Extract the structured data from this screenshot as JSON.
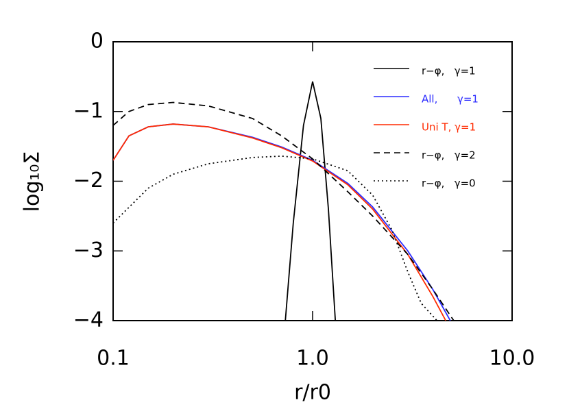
{
  "chart_data": {
    "type": "line",
    "xlabel": "r/r0",
    "ylabel": "log₁₀Σ",
    "xscale": "log",
    "xlim": [
      0.1,
      10
    ],
    "ylim": [
      -4,
      0
    ],
    "xticks": [
      0.1,
      {
        "value": 1,
        "label": "1.0"
      },
      {
        "value": 10,
        "label": "10.0"
      }
    ],
    "yticks": [
      {
        "value": 0,
        "label": "0"
      },
      {
        "value": -1,
        "label": "−1"
      },
      {
        "value": -2,
        "label": "−2"
      },
      {
        "value": -3,
        "label": "−3"
      },
      {
        "value": -4,
        "label": "−4"
      }
    ],
    "legend": "upper right",
    "series": [
      {
        "name": "r−φ,   γ=1",
        "color": "#000000",
        "dash": "solid",
        "x": [
          0.73,
          0.8,
          0.9,
          1.0,
          1.1,
          1.2,
          1.3
        ],
        "values": [
          -4.0,
          -2.6,
          -1.2,
          -0.57,
          -1.1,
          -2.4,
          -4.0
        ]
      },
      {
        "name": "All,      γ=1",
        "color": "#2b2bff",
        "dash": "solid",
        "x": [
          0.1,
          0.12,
          0.15,
          0.2,
          0.3,
          0.5,
          0.7,
          1.0,
          1.5,
          2.0,
          3.0,
          4.0,
          4.9
        ],
        "values": [
          -1.7,
          -1.35,
          -1.22,
          -1.18,
          -1.22,
          -1.37,
          -1.51,
          -1.7,
          -2.03,
          -2.37,
          -3.0,
          -3.55,
          -4.0
        ]
      },
      {
        "name": "Uni T, γ=1",
        "color": "#ff2a00",
        "dash": "solid",
        "x": [
          0.1,
          0.12,
          0.15,
          0.2,
          0.3,
          0.5,
          0.7,
          1.0,
          1.5,
          2.0,
          3.0,
          4.0,
          4.65
        ],
        "values": [
          -1.7,
          -1.35,
          -1.22,
          -1.18,
          -1.22,
          -1.38,
          -1.52,
          -1.71,
          -2.05,
          -2.4,
          -3.05,
          -3.65,
          -4.0
        ]
      },
      {
        "name": "r−φ,   γ=2",
        "color": "#000000",
        "dash": "dashed",
        "x": [
          0.1,
          0.12,
          0.15,
          0.2,
          0.3,
          0.5,
          0.7,
          1.0,
          1.5,
          2.0,
          3.0,
          4.0,
          5.1
        ],
        "values": [
          -1.2,
          -1.0,
          -0.9,
          -0.87,
          -0.92,
          -1.1,
          -1.35,
          -1.68,
          -2.15,
          -2.5,
          -3.05,
          -3.55,
          -4.0
        ]
      },
      {
        "name": "r−φ,   γ=0",
        "color": "#000000",
        "dash": "dotted",
        "x": [
          0.1,
          0.15,
          0.2,
          0.3,
          0.5,
          0.7,
          1.0,
          1.5,
          2.0,
          2.5,
          3.0,
          3.5,
          4.2
        ],
        "values": [
          -2.6,
          -2.1,
          -1.9,
          -1.75,
          -1.66,
          -1.64,
          -1.68,
          -1.85,
          -2.2,
          -2.7,
          -3.3,
          -3.75,
          -4.0
        ]
      }
    ]
  }
}
